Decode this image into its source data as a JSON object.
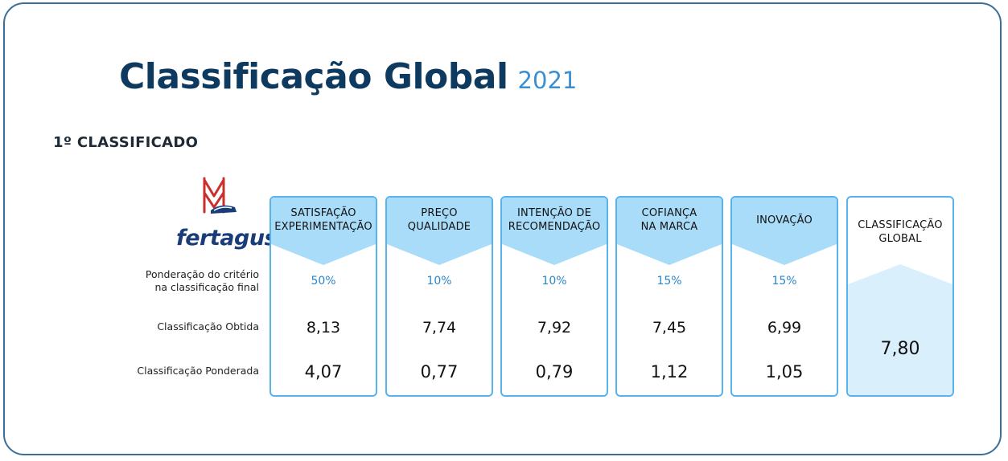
{
  "title": {
    "main": "Classificação Global",
    "year": "2021"
  },
  "subtitle": "1º CLASSIFICADO",
  "logo": {
    "text": "fertagus"
  },
  "row_labels": {
    "ponderacao_line1": "Ponderação do critério",
    "ponderacao_line2": "na classificação final",
    "obtida": "Classificação Obtida",
    "ponderada": "Classificação Ponderada"
  },
  "criteria": [
    {
      "line1": "SATISFAÇÃO",
      "line2": "EXPERIMENTAÇÃO",
      "weight": "50%",
      "obtida": "8,13",
      "ponderada": "4,07"
    },
    {
      "line1": "PREÇO",
      "line2": "QUALIDADE",
      "weight": "10%",
      "obtida": "7,74",
      "ponderada": "0,77"
    },
    {
      "line1": "INTENÇÃO DE",
      "line2": "RECOMENDAÇÃO",
      "weight": "10%",
      "obtida": "7,92",
      "ponderada": "0,79"
    },
    {
      "line1": "COFIANÇA",
      "line2": "NA MARCA",
      "weight": "15%",
      "obtida": "7,45",
      "ponderada": "1,12"
    },
    {
      "line1": "INOVAÇÃO",
      "line2": "",
      "weight": "15%",
      "obtida": "6,99",
      "ponderada": "1,05"
    }
  ],
  "global": {
    "line1": "CLASSIFICAÇÃO",
    "line2": "GLOBAL",
    "value": "7,80"
  },
  "colors": {
    "accent": "#56b3ec",
    "header_fill": "#a9dcf8",
    "title": "#0f3a5f",
    "year": "#3b8fd0",
    "brand_red": "#c9302c"
  }
}
